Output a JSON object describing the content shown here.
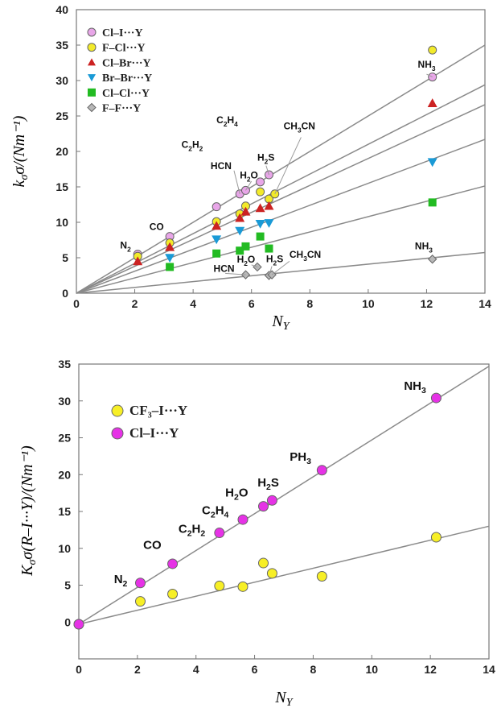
{
  "chart_data": [
    {
      "type": "scatter",
      "title": "",
      "xlabel": "N_Y",
      "ylabel": "k_σ/(Nm⁻¹)",
      "xlim": [
        0,
        14
      ],
      "ylim": [
        0,
        40
      ],
      "xticks": [
        0,
        2,
        4,
        6,
        8,
        10,
        12,
        14
      ],
      "yticks": [
        0,
        5,
        10,
        15,
        20,
        25,
        30,
        35,
        40
      ],
      "grid": false,
      "legend_position": "top-left",
      "series": [
        {
          "name": "Cl–I···Y",
          "marker": "circle",
          "color": "#e8a6e8",
          "x": [
            2.1,
            3.2,
            4.8,
            5.6,
            5.8,
            6.3,
            6.6,
            12.2
          ],
          "y": [
            5.5,
            8.0,
            12.2,
            14.0,
            14.5,
            15.7,
            16.7,
            30.5
          ],
          "fit_slope": 2.5
        },
        {
          "name": "F–Cl···Y",
          "marker": "circle",
          "color": "#f2ea2a",
          "x": [
            2.1,
            3.2,
            4.8,
            5.6,
            5.8,
            6.3,
            6.6,
            6.8,
            12.2
          ],
          "y": [
            5.2,
            7.1,
            10.1,
            11.2,
            12.3,
            14.3,
            13.3,
            14.0,
            34.3
          ],
          "fit_slope": 2.1
        },
        {
          "name": "Cl–Br···Y",
          "marker": "triangle-up",
          "color": "#cc2222",
          "x": [
            2.1,
            3.2,
            4.8,
            5.6,
            5.8,
            6.3,
            6.6,
            12.2
          ],
          "y": [
            4.5,
            6.5,
            9.5,
            10.6,
            11.5,
            12.0,
            12.3,
            26.8
          ],
          "fit_slope": 1.9
        },
        {
          "name": "Br–Br···Y",
          "marker": "triangle-down",
          "color": "#1a9ad6",
          "x": [
            3.2,
            4.8,
            5.6,
            6.3,
            6.6,
            12.2
          ],
          "y": [
            5.0,
            7.6,
            8.8,
            9.8,
            9.9,
            18.5
          ],
          "fit_slope": 1.55
        },
        {
          "name": "Cl–Cl···Y",
          "marker": "square",
          "color": "#22bb22",
          "x": [
            3.2,
            4.8,
            5.6,
            5.8,
            6.3,
            6.6,
            12.2
          ],
          "y": [
            3.7,
            5.6,
            6.0,
            6.6,
            8.0,
            6.3,
            12.8
          ],
          "fit_slope": 1.08
        },
        {
          "name": "F–F···Y",
          "marker": "diamond",
          "color": "#b8b8b8",
          "x": [
            5.8,
            6.2,
            6.6,
            6.7,
            12.2
          ],
          "y": [
            2.6,
            3.7,
            2.5,
            2.6,
            4.8
          ],
          "fit_slope": 0.41
        }
      ],
      "annotations": [
        {
          "text": "N",
          "sub": "2",
          "x": 1.5,
          "y": 6.3
        },
        {
          "text": "CO",
          "x": 2.5,
          "y": 8.9
        },
        {
          "text": "C",
          "sub": "2",
          "text2": "H",
          "sub2": "2",
          "x": 3.6,
          "y": 20.5
        },
        {
          "text": "C",
          "sub": "2",
          "text2": "H",
          "sub2": "4",
          "x": 4.8,
          "y": 24.0
        },
        {
          "text": "HCN",
          "x": 4.6,
          "y": 17.5
        },
        {
          "text": "H",
          "sub": "2",
          "text2": "O",
          "x": 5.6,
          "y": 16.2
        },
        {
          "text": "H",
          "sub": "2",
          "text2": "S",
          "x": 6.2,
          "y": 18.7
        },
        {
          "text": "CH",
          "sub": "3",
          "text2": "CN",
          "x": 7.1,
          "y": 23.1
        },
        {
          "text": "NH",
          "sub": "3",
          "x": 11.7,
          "y": 31.8
        },
        {
          "text": "HCN",
          "x": 4.7,
          "y": 3.0
        },
        {
          "text": "H",
          "sub": "2",
          "text2": "O",
          "x": 5.5,
          "y": 4.3
        },
        {
          "text": "H",
          "sub": "2",
          "text2": "S",
          "x": 6.5,
          "y": 4.4
        },
        {
          "text": "CH",
          "sub": "3",
          "text2": "CN",
          "x": 7.3,
          "y": 5.0
        },
        {
          "text": "NH",
          "sub": "3",
          "x": 11.6,
          "y": 6.2
        }
      ]
    },
    {
      "type": "scatter",
      "title": "",
      "xlabel": "N_Y",
      "ylabel": "K_σ(R–I···Y)/(Nm⁻¹)",
      "xlim": [
        0,
        14
      ],
      "ylim": [
        -5,
        35
      ],
      "xticks": [
        0,
        2,
        4,
        6,
        8,
        10,
        12,
        14
      ],
      "yticks": [
        0,
        5,
        10,
        15,
        20,
        25,
        30,
        35
      ],
      "grid": false,
      "legend_position": "top-left",
      "series": [
        {
          "name": "CF₃–I···Y",
          "marker": "circle",
          "color": "#f7ef26",
          "x": [
            0,
            2.1,
            3.2,
            4.8,
            5.6,
            6.3,
            6.6,
            8.3,
            12.2
          ],
          "y": [
            -0.3,
            2.8,
            3.8,
            4.9,
            4.8,
            8.0,
            6.6,
            6.2,
            11.5
          ],
          "fit_slope": 0.95
        },
        {
          "name": "Cl–I···Y",
          "marker": "circle",
          "color": "#e632e6",
          "x": [
            0,
            2.1,
            3.2,
            4.8,
            5.6,
            6.3,
            6.6,
            8.3,
            12.2
          ],
          "y": [
            -0.3,
            5.3,
            7.9,
            12.1,
            13.9,
            15.7,
            16.5,
            20.6,
            30.4
          ],
          "fit_slope": 2.5
        }
      ],
      "annotations": [
        {
          "text": "N",
          "sub": "2",
          "x": 1.2,
          "y": 5.3
        },
        {
          "text": "CO",
          "x": 2.2,
          "y": 9.9
        },
        {
          "text": "C",
          "sub": "2",
          "text2": "H",
          "sub2": "2",
          "x": 3.4,
          "y": 12.1
        },
        {
          "text": "C",
          "sub": "2",
          "text2": "H",
          "sub2": "4",
          "x": 4.2,
          "y": 14.6
        },
        {
          "text": "H",
          "sub": "2",
          "text2": "O",
          "x": 5.0,
          "y": 17.0
        },
        {
          "text": "H",
          "sub": "2",
          "text2": "S",
          "x": 6.1,
          "y": 18.4
        },
        {
          "text": "PH",
          "sub": "3",
          "x": 7.2,
          "y": 21.9
        },
        {
          "text": "NH",
          "sub": "3",
          "x": 11.1,
          "y": 31.5
        }
      ]
    }
  ]
}
